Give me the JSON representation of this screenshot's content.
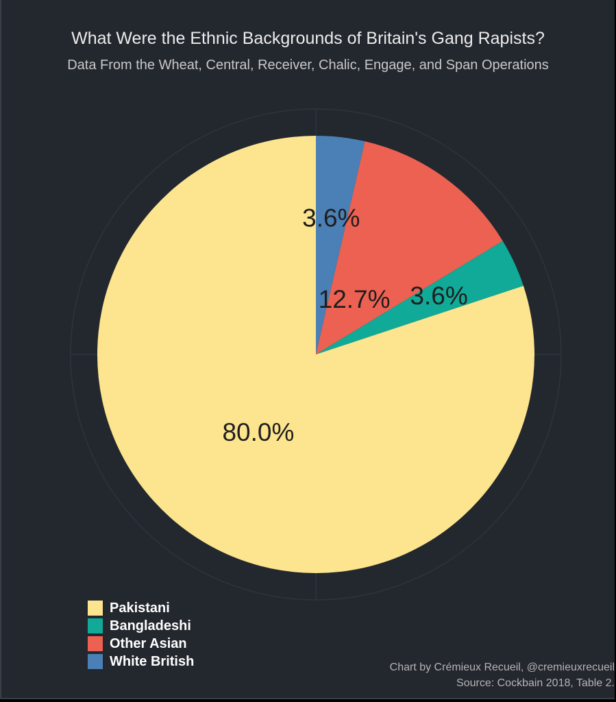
{
  "chart_data": {
    "type": "pie",
    "title": "What Were the Ethnic Backgrounds of Britain's Gang Rapists?",
    "subtitle": "Data From the Wheat, Central, Receiver, Chalic, Engage, and Span Operations",
    "categories": [
      "White British",
      "Other Asian",
      "Bangladeshi",
      "Pakistani"
    ],
    "values": [
      3.6,
      12.7,
      3.6,
      80.0
    ],
    "labels": [
      "3.6%",
      "12.7%",
      "3.6%",
      "80.0%"
    ],
    "colors": [
      "#4a80b5",
      "#ed6152",
      "#11a997",
      "#fde48e"
    ],
    "start": "12 o'clock, clockwise",
    "legend": {
      "placement": "bottom-left",
      "entries": [
        {
          "label": "Pakistani",
          "color": "#fde48e"
        },
        {
          "label": "Bangladeshi",
          "color": "#11a997"
        },
        {
          "label": "Other Asian",
          "color": "#ed6152"
        },
        {
          "label": "White British",
          "color": "#4a80b5"
        }
      ]
    },
    "credit": "Chart by Crémieux Recueil, @cremieuxrecueil",
    "source": "Source: Cockbain 2018, Table 2."
  }
}
